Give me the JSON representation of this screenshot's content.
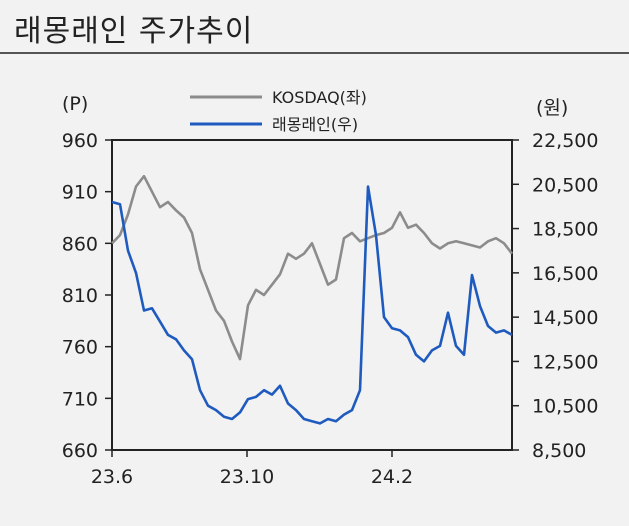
{
  "page": {
    "title": "래몽래인 주가추이"
  },
  "chart_data": {
    "type": "line",
    "title": "래몽래인 주가추이",
    "left_unit": "(P)",
    "right_unit": "(원)",
    "x_ticks": [
      "23.6",
      "23.10",
      "24.2"
    ],
    "left_axis": {
      "ylim": [
        660,
        960
      ],
      "ticks": [
        "960",
        "910",
        "860",
        "810",
        "760",
        "710",
        "660"
      ]
    },
    "right_axis": {
      "ylim": [
        8500,
        22500
      ],
      "ticks": [
        "22,500",
        "20,500",
        "18,500",
        "16,500",
        "14,500",
        "12,500",
        "10,500",
        "8,500"
      ]
    },
    "legend": [
      "KOSDAQ(좌)",
      "래몽래인(우)"
    ],
    "series": [
      {
        "name": "KOSDAQ(좌)",
        "axis": "left",
        "color": "#8c8c8c",
        "x": [
          0,
          2,
          4,
          6,
          8,
          10,
          12,
          14,
          16,
          18,
          20,
          22,
          24,
          26,
          28,
          30,
          32,
          34,
          36,
          38,
          40,
          42,
          44,
          46,
          48,
          50,
          52,
          54,
          56,
          58,
          60,
          62,
          64,
          66,
          68,
          70,
          72,
          74,
          76,
          78,
          80,
          82,
          84,
          86,
          88,
          90,
          92,
          94,
          96,
          98,
          100
        ],
        "values": [
          860,
          868,
          888,
          915,
          925,
          910,
          895,
          900,
          892,
          885,
          870,
          835,
          815,
          795,
          785,
          765,
          748,
          800,
          815,
          810,
          820,
          830,
          850,
          845,
          850,
          860,
          840,
          820,
          825,
          865,
          870,
          862,
          865,
          868,
          870,
          875,
          890,
          875,
          878,
          870,
          860,
          855,
          860,
          862,
          860,
          858,
          856,
          862,
          865,
          860,
          850
        ]
      },
      {
        "name": "래몽래인(우)",
        "axis": "right",
        "color": "#1f5bbf",
        "x": [
          0,
          2,
          4,
          6,
          8,
          10,
          12,
          14,
          16,
          18,
          20,
          22,
          24,
          26,
          28,
          30,
          32,
          34,
          36,
          38,
          40,
          42,
          44,
          46,
          48,
          50,
          52,
          54,
          56,
          58,
          60,
          62,
          64,
          66,
          68,
          70,
          72,
          74,
          76,
          78,
          80,
          82,
          84,
          86,
          88,
          90,
          92,
          94,
          96,
          98,
          100
        ],
        "values": [
          19700,
          19600,
          17500,
          16500,
          14800,
          14900,
          14300,
          13700,
          13500,
          13000,
          12600,
          11200,
          10500,
          10300,
          10000,
          9900,
          10200,
          10800,
          10900,
          11200,
          11000,
          11400,
          10600,
          10300,
          9900,
          9800,
          9700,
          9900,
          9800,
          10100,
          10300,
          11200,
          20400,
          18200,
          14500,
          14000,
          13900,
          13600,
          12800,
          12500,
          13000,
          13200,
          14700,
          13200,
          12800,
          16400,
          15000,
          14100,
          13800,
          13900,
          13700
        ]
      }
    ]
  }
}
